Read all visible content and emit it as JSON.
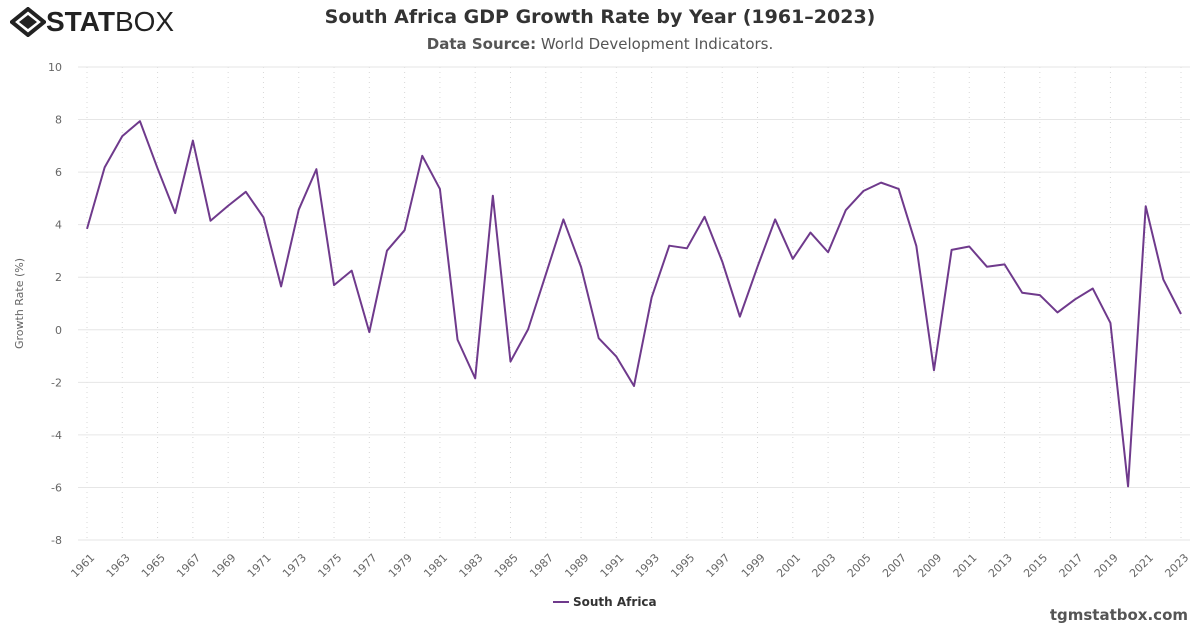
{
  "brand": {
    "logo_bold": "STAT",
    "logo_thin": "BOX"
  },
  "title": "South Africa GDP Growth Rate by Year (1961–2023)",
  "source_label": "Data Source:",
  "source_text": "World Development Indicators.",
  "watermark": "tgmstatbox.com",
  "colors": {
    "series": "#6f3a8c",
    "grid": "#e6e6e6",
    "text": "#666666"
  },
  "chart_data": {
    "type": "line",
    "title": "South Africa GDP Growth Rate by Year (1961–2023)",
    "xlabel": "",
    "ylabel": "Growth Rate (%)",
    "ylim": [
      -8,
      10
    ],
    "yticks": [
      -8,
      -6,
      -4,
      -2,
      0,
      2,
      4,
      6,
      8,
      10
    ],
    "xlim": [
      1961,
      2023
    ],
    "xticks": [
      1961,
      1963,
      1965,
      1967,
      1969,
      1971,
      1973,
      1975,
      1977,
      1979,
      1981,
      1983,
      1985,
      1987,
      1989,
      1991,
      1993,
      1995,
      1997,
      1999,
      2001,
      2003,
      2005,
      2007,
      2009,
      2011,
      2013,
      2015,
      2017,
      2019,
      2021,
      2023
    ],
    "grid": true,
    "legend_position": "bottom",
    "x": [
      1961,
      1962,
      1963,
      1964,
      1965,
      1966,
      1967,
      1968,
      1969,
      1970,
      1971,
      1972,
      1973,
      1974,
      1975,
      1976,
      1977,
      1978,
      1979,
      1980,
      1981,
      1982,
      1983,
      1984,
      1985,
      1986,
      1987,
      1988,
      1989,
      1990,
      1991,
      1992,
      1993,
      1994,
      1995,
      1996,
      1997,
      1998,
      1999,
      2000,
      2001,
      2002,
      2003,
      2004,
      2005,
      2006,
      2007,
      2008,
      2009,
      2010,
      2011,
      2012,
      2013,
      2014,
      2015,
      2016,
      2017,
      2018,
      2019,
      2020,
      2021,
      2022,
      2023
    ],
    "series": [
      {
        "name": "South Africa",
        "values": [
          3.84,
          6.18,
          7.37,
          7.94,
          6.14,
          4.44,
          7.2,
          4.15,
          4.72,
          5.25,
          4.28,
          1.65,
          4.57,
          6.11,
          1.7,
          2.25,
          -0.09,
          3.01,
          3.79,
          6.62,
          5.36,
          -0.38,
          -1.85,
          5.1,
          -1.21,
          0.02,
          2.1,
          4.2,
          2.39,
          -0.32,
          -1.02,
          -2.14,
          1.23,
          3.2,
          3.1,
          4.3,
          2.6,
          0.5,
          2.4,
          4.2,
          2.7,
          3.7,
          2.95,
          4.55,
          5.28,
          5.6,
          5.36,
          3.19,
          -1.54,
          3.04,
          3.17,
          2.4,
          2.49,
          1.41,
          1.32,
          0.66,
          1.16,
          1.57,
          0.26,
          -5.96,
          4.7,
          1.91,
          0.6
        ]
      }
    ]
  }
}
